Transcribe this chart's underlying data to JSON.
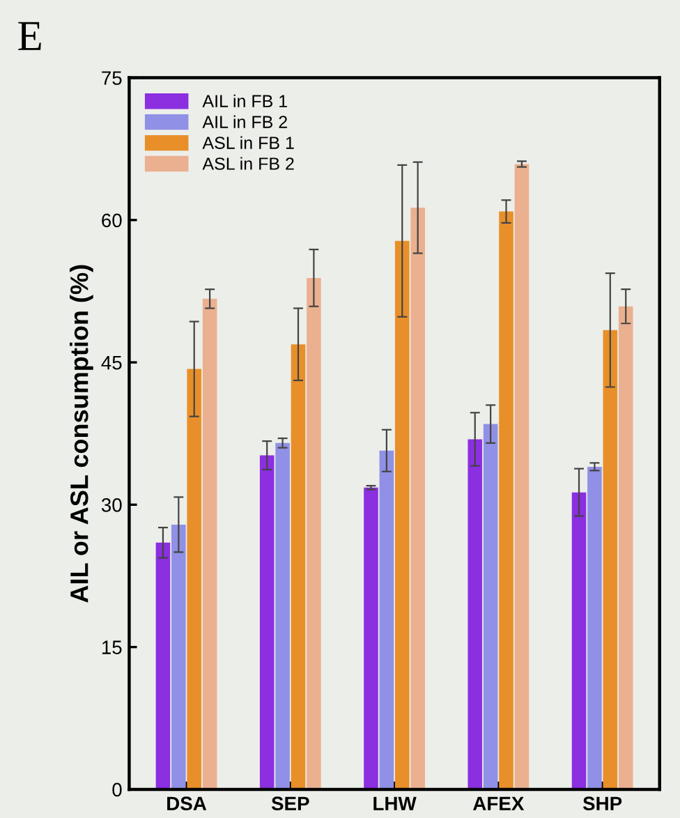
{
  "chart_data": {
    "type": "bar",
    "ylabel": "AIL or ASL consumption (%)",
    "annotations": [
      "E"
    ],
    "categories": [
      "DSA",
      "SEP",
      "LHW",
      "AFEX",
      "SHP"
    ],
    "series": [
      {
        "name": "AIL in FB 1",
        "color": "#8b2fe0",
        "values": [
          26.0,
          35.2,
          31.8,
          36.9,
          31.3
        ],
        "errors": [
          1.6,
          1.5,
          0.2,
          2.8,
          2.5
        ]
      },
      {
        "name": "AIL in FB 2",
        "color": "#9090e6",
        "values": [
          27.9,
          36.5,
          35.7,
          38.5,
          34.0
        ],
        "errors": [
          2.9,
          0.5,
          2.2,
          2.0,
          0.4
        ]
      },
      {
        "name": "ASL in FB 1",
        "color": "#e88f2a",
        "values": [
          44.3,
          46.9,
          57.8,
          60.9,
          48.4
        ],
        "errors": [
          5.0,
          3.8,
          8.0,
          1.2,
          6.0
        ]
      },
      {
        "name": "ASL in FB 2",
        "color": "#ebb08f",
        "values": [
          51.7,
          53.9,
          61.3,
          65.9,
          50.9
        ],
        "errors": [
          1.0,
          3.0,
          4.8,
          0.3,
          1.8
        ]
      }
    ],
    "ylim": [
      0,
      75
    ],
    "yticks": [
      0,
      15,
      30,
      45,
      60,
      75
    ],
    "legend": "top left",
    "grid": false
  }
}
